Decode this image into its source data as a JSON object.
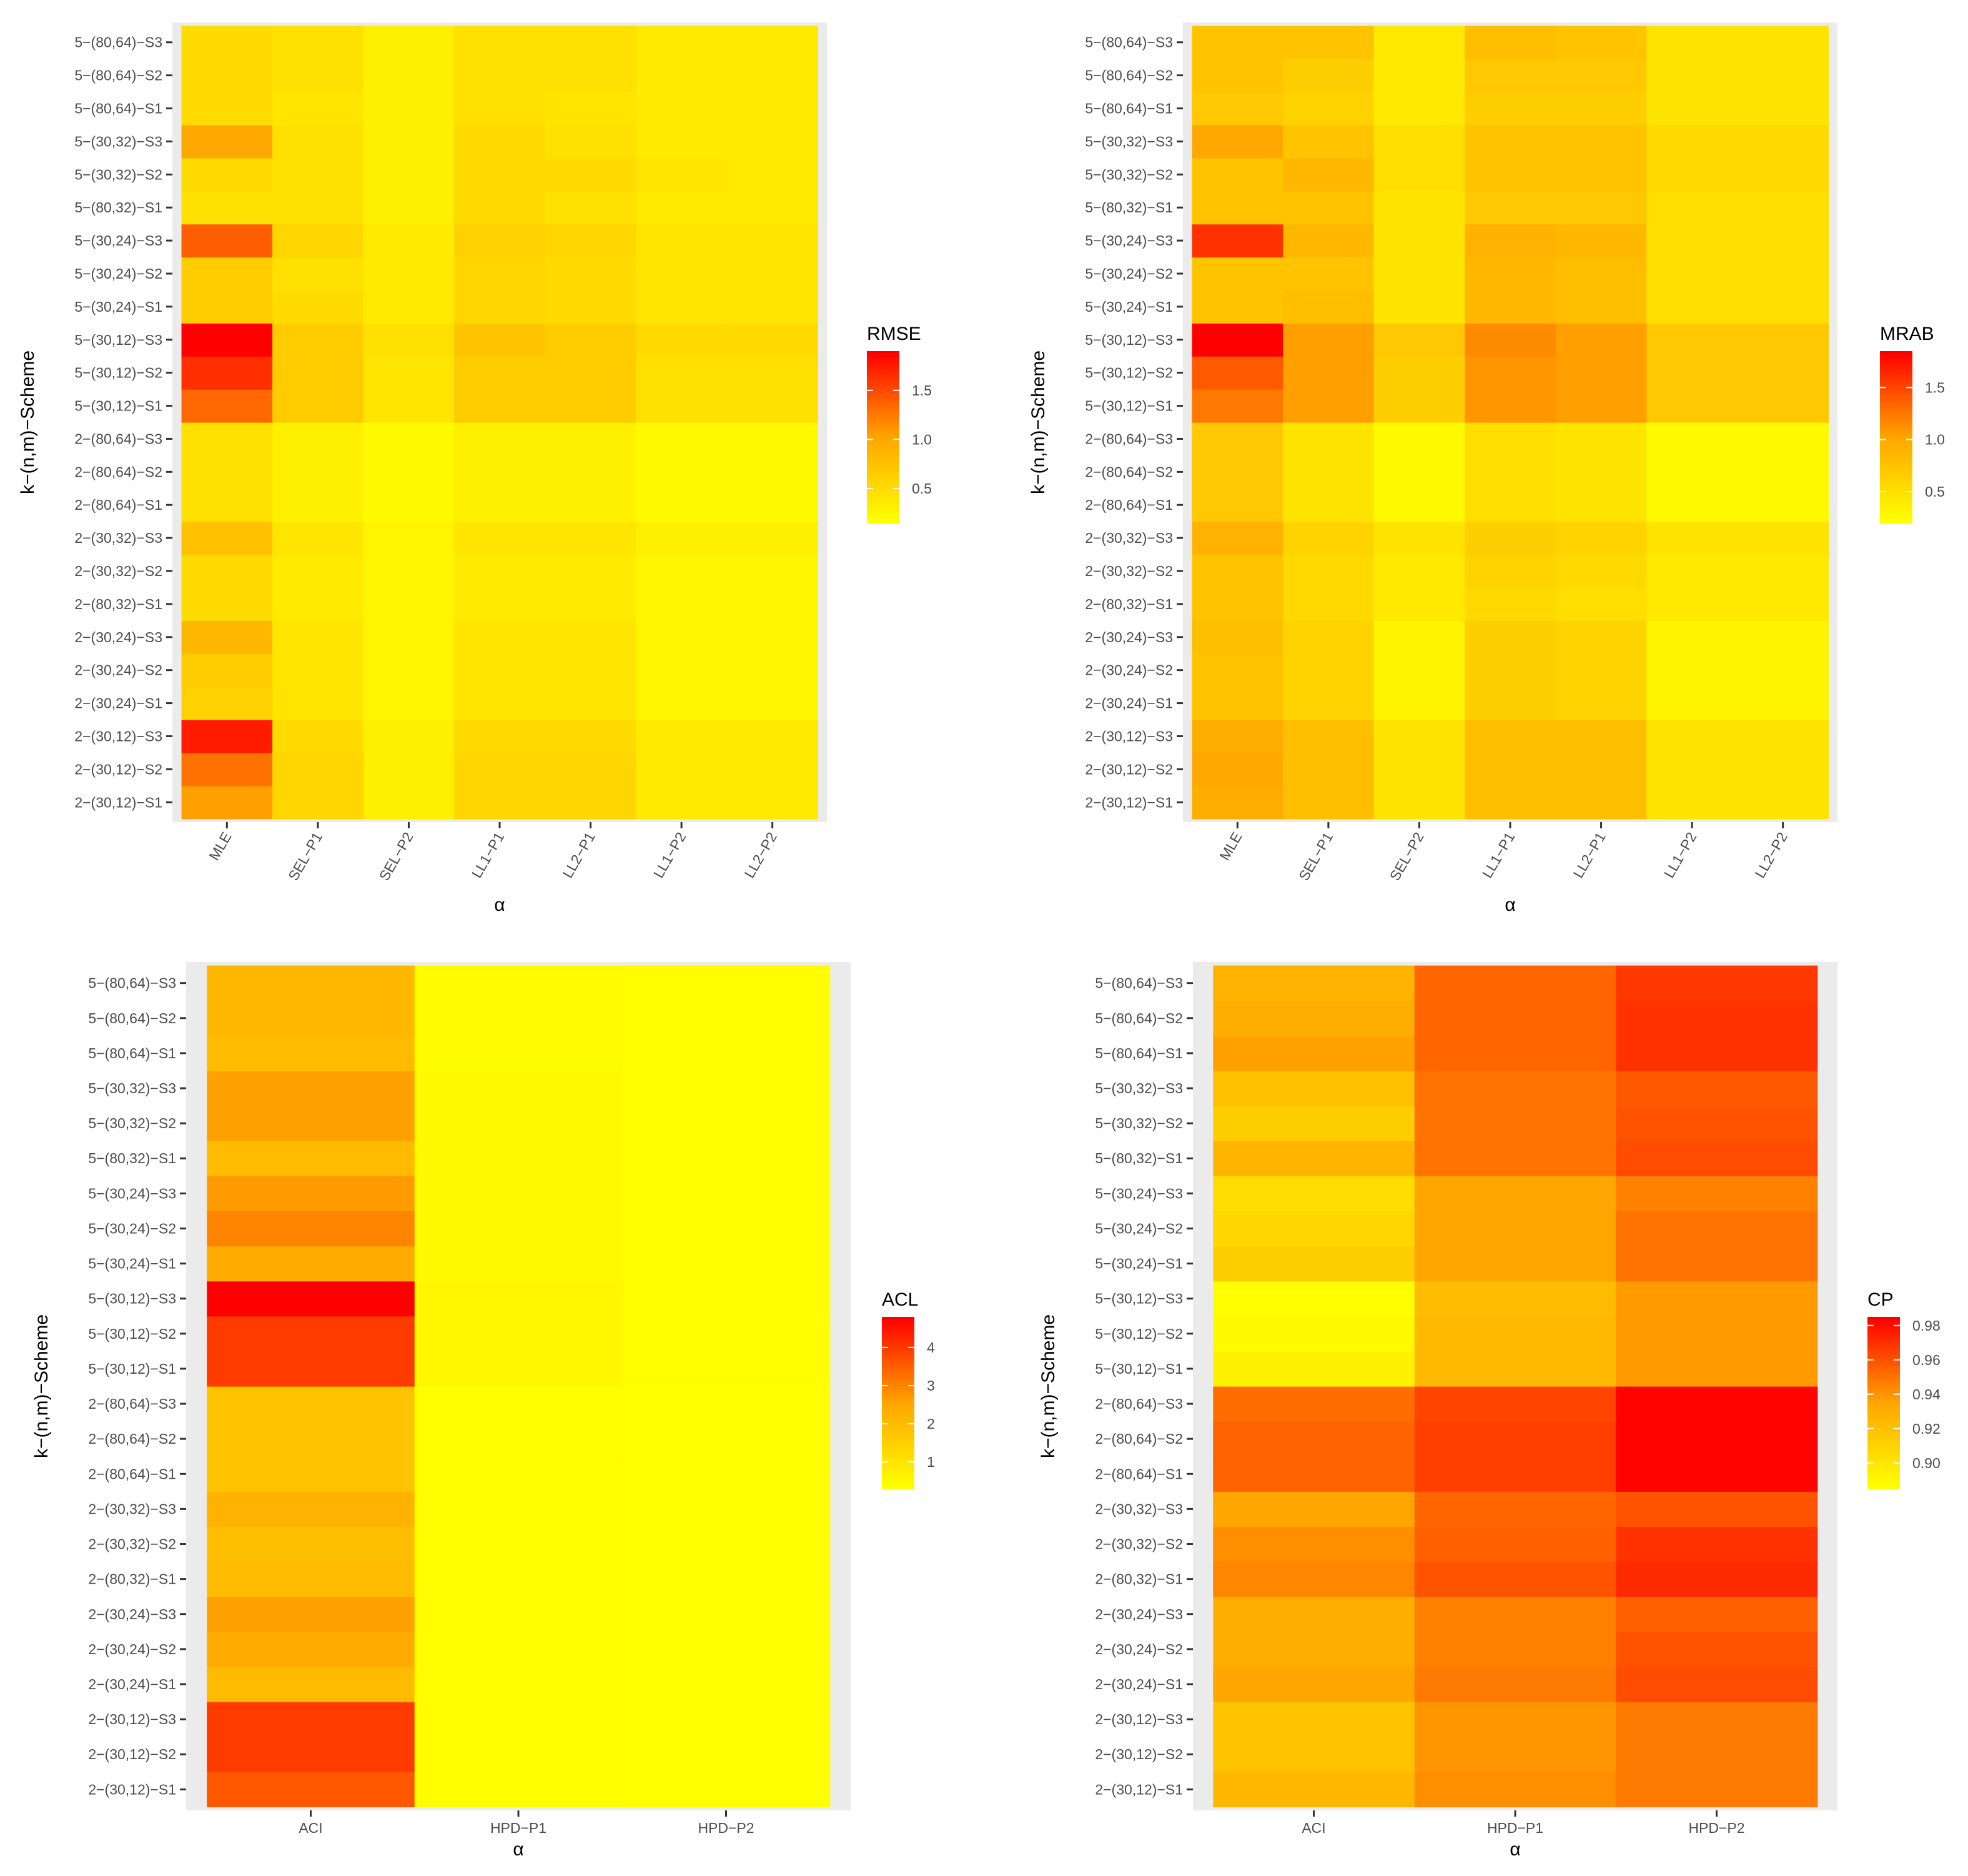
{
  "chart_data": [
    {
      "type": "heatmap",
      "title": "",
      "xlabel": "α",
      "ylabel": "k−(n,m)−Scheme",
      "legend_title": "RMSE",
      "legend_ticks": [
        "0.5",
        "1.0",
        "1.5"
      ],
      "legend_tick_values": [
        0.5,
        1.0,
        1.5
      ],
      "color_range": [
        0.15,
        1.9
      ],
      "x": [
        "MLE",
        "SEL−P1",
        "SEL−P2",
        "LL1−P1",
        "LL2−P1",
        "LL1−P2",
        "LL2−P2"
      ],
      "y": [
        "2−(30,12)−S1",
        "2−(30,12)−S2",
        "2−(30,12)−S3",
        "2−(30,24)−S1",
        "2−(30,24)−S2",
        "2−(30,24)−S3",
        "2−(80,32)−S1",
        "2−(30,32)−S2",
        "2−(30,32)−S3",
        "2−(80,64)−S1",
        "2−(80,64)−S2",
        "2−(80,64)−S3",
        "5−(30,12)−S1",
        "5−(30,12)−S2",
        "5−(30,12)−S3",
        "5−(30,24)−S1",
        "5−(30,24)−S2",
        "5−(30,24)−S3",
        "5−(80,32)−S1",
        "5−(30,32)−S2",
        "5−(30,32)−S3",
        "5−(80,64)−S1",
        "5−(80,64)−S2",
        "5−(80,64)−S3"
      ],
      "values": [
        [
          1.05,
          0.55,
          0.3,
          0.55,
          0.55,
          0.35,
          0.35
        ],
        [
          1.3,
          0.55,
          0.3,
          0.55,
          0.55,
          0.35,
          0.35
        ],
        [
          1.75,
          0.5,
          0.3,
          0.5,
          0.5,
          0.35,
          0.35
        ],
        [
          0.6,
          0.4,
          0.25,
          0.4,
          0.4,
          0.25,
          0.25
        ],
        [
          0.65,
          0.4,
          0.25,
          0.4,
          0.4,
          0.25,
          0.25
        ],
        [
          0.85,
          0.4,
          0.25,
          0.4,
          0.4,
          0.25,
          0.25
        ],
        [
          0.5,
          0.35,
          0.25,
          0.35,
          0.35,
          0.25,
          0.25
        ],
        [
          0.5,
          0.35,
          0.25,
          0.35,
          0.35,
          0.25,
          0.25
        ],
        [
          0.75,
          0.4,
          0.25,
          0.4,
          0.4,
          0.3,
          0.3
        ],
        [
          0.45,
          0.3,
          0.2,
          0.3,
          0.3,
          0.2,
          0.2
        ],
        [
          0.45,
          0.3,
          0.2,
          0.3,
          0.3,
          0.2,
          0.2
        ],
        [
          0.45,
          0.3,
          0.2,
          0.3,
          0.3,
          0.2,
          0.2
        ],
        [
          1.35,
          0.65,
          0.4,
          0.65,
          0.65,
          0.45,
          0.45
        ],
        [
          1.65,
          0.65,
          0.4,
          0.65,
          0.65,
          0.45,
          0.45
        ],
        [
          1.9,
          0.65,
          0.45,
          0.7,
          0.65,
          0.5,
          0.5
        ],
        [
          0.65,
          0.5,
          0.35,
          0.55,
          0.5,
          0.4,
          0.4
        ],
        [
          0.65,
          0.45,
          0.35,
          0.55,
          0.5,
          0.4,
          0.4
        ],
        [
          1.4,
          0.55,
          0.35,
          0.6,
          0.55,
          0.4,
          0.4
        ],
        [
          0.45,
          0.45,
          0.3,
          0.5,
          0.45,
          0.35,
          0.35
        ],
        [
          0.5,
          0.45,
          0.3,
          0.5,
          0.5,
          0.4,
          0.35
        ],
        [
          1.0,
          0.45,
          0.3,
          0.5,
          0.45,
          0.35,
          0.35
        ],
        [
          0.5,
          0.4,
          0.3,
          0.45,
          0.4,
          0.35,
          0.35
        ],
        [
          0.5,
          0.45,
          0.3,
          0.45,
          0.45,
          0.35,
          0.35
        ],
        [
          0.5,
          0.45,
          0.3,
          0.45,
          0.45,
          0.35,
          0.35
        ]
      ]
    },
    {
      "type": "heatmap",
      "title": "",
      "xlabel": "α",
      "ylabel": "k−(n,m)−Scheme",
      "legend_title": "MRAB",
      "legend_ticks": [
        "0.5",
        "1.0",
        "1.5"
      ],
      "legend_tick_values": [
        0.5,
        1.0,
        1.5
      ],
      "color_range": [
        0.2,
        1.85
      ],
      "x": [
        "MLE",
        "SEL−P1",
        "SEL−P2",
        "LL1−P1",
        "LL2−P1",
        "LL1−P2",
        "LL2−P2"
      ],
      "y": [
        "2−(30,12)−S1",
        "2−(30,12)−S2",
        "2−(30,12)−S3",
        "2−(30,24)−S1",
        "2−(30,24)−S2",
        "2−(30,24)−S3",
        "2−(80,32)−S1",
        "2−(30,32)−S2",
        "2−(30,32)−S3",
        "2−(80,64)−S1",
        "2−(80,64)−S2",
        "2−(80,64)−S3",
        "5−(30,12)−S1",
        "5−(30,12)−S2",
        "5−(30,12)−S3",
        "5−(30,24)−S1",
        "5−(30,24)−S2",
        "5−(30,24)−S3",
        "5−(80,32)−S1",
        "5−(30,32)−S2",
        "5−(30,32)−S3",
        "5−(80,64)−S1",
        "5−(80,64)−S2",
        "5−(80,64)−S3"
      ],
      "values": [
        [
          0.95,
          0.8,
          0.45,
          0.8,
          0.8,
          0.45,
          0.45
        ],
        [
          1.0,
          0.8,
          0.45,
          0.8,
          0.8,
          0.45,
          0.45
        ],
        [
          0.95,
          0.8,
          0.45,
          0.8,
          0.8,
          0.45,
          0.45
        ],
        [
          0.75,
          0.6,
          0.3,
          0.65,
          0.6,
          0.3,
          0.3
        ],
        [
          0.75,
          0.6,
          0.3,
          0.65,
          0.6,
          0.3,
          0.3
        ],
        [
          0.8,
          0.6,
          0.3,
          0.65,
          0.6,
          0.3,
          0.3
        ],
        [
          0.75,
          0.55,
          0.4,
          0.55,
          0.5,
          0.4,
          0.4
        ],
        [
          0.75,
          0.55,
          0.4,
          0.6,
          0.55,
          0.4,
          0.4
        ],
        [
          0.9,
          0.6,
          0.45,
          0.65,
          0.6,
          0.45,
          0.45
        ],
        [
          0.7,
          0.45,
          0.25,
          0.5,
          0.45,
          0.25,
          0.25
        ],
        [
          0.7,
          0.45,
          0.25,
          0.5,
          0.45,
          0.25,
          0.25
        ],
        [
          0.7,
          0.45,
          0.25,
          0.5,
          0.45,
          0.25,
          0.25
        ],
        [
          1.25,
          1.05,
          0.65,
          1.1,
          1.05,
          0.7,
          0.7
        ],
        [
          1.4,
          1.05,
          0.65,
          1.1,
          1.05,
          0.7,
          0.7
        ],
        [
          1.85,
          1.05,
          0.7,
          1.15,
          1.05,
          0.7,
          0.7
        ],
        [
          0.75,
          0.8,
          0.45,
          0.85,
          0.8,
          0.5,
          0.5
        ],
        [
          0.75,
          0.75,
          0.45,
          0.85,
          0.8,
          0.5,
          0.5
        ],
        [
          1.6,
          0.85,
          0.45,
          0.9,
          0.85,
          0.5,
          0.5
        ],
        [
          0.75,
          0.75,
          0.45,
          0.7,
          0.7,
          0.5,
          0.5
        ],
        [
          0.75,
          0.85,
          0.5,
          0.75,
          0.75,
          0.55,
          0.55
        ],
        [
          1.0,
          0.75,
          0.5,
          0.75,
          0.75,
          0.55,
          0.55
        ],
        [
          0.7,
          0.6,
          0.4,
          0.65,
          0.65,
          0.45,
          0.45
        ],
        [
          0.75,
          0.65,
          0.4,
          0.7,
          0.7,
          0.45,
          0.45
        ],
        [
          0.75,
          0.75,
          0.4,
          0.8,
          0.75,
          0.45,
          0.45
        ]
      ]
    },
    {
      "type": "heatmap",
      "title": "",
      "xlabel": "α",
      "ylabel": "k−(n,m)−Scheme",
      "legend_title": "ACL",
      "legend_ticks": [
        "1",
        "2",
        "3",
        "4"
      ],
      "legend_tick_values": [
        1,
        2,
        3,
        4
      ],
      "color_range": [
        0.3,
        4.8
      ],
      "x": [
        "ACI",
        "HPD−P1",
        "HPD−P2"
      ],
      "y": [
        "2−(30,12)−S1",
        "2−(30,12)−S2",
        "2−(30,12)−S3",
        "2−(30,24)−S1",
        "2−(30,24)−S2",
        "2−(30,24)−S3",
        "2−(80,32)−S1",
        "2−(30,32)−S2",
        "2−(30,32)−S3",
        "2−(80,64)−S1",
        "2−(80,64)−S2",
        "2−(80,64)−S3",
        "5−(30,12)−S1",
        "5−(30,12)−S2",
        "5−(30,12)−S3",
        "5−(30,24)−S1",
        "5−(30,24)−S2",
        "5−(30,24)−S3",
        "5−(80,32)−S1",
        "5−(30,32)−S2",
        "5−(30,32)−S3",
        "5−(80,64)−S1",
        "5−(80,64)−S2",
        "5−(80,64)−S3"
      ],
      "values": [
        [
          3.6,
          0.35,
          0.3
        ],
        [
          4.0,
          0.35,
          0.3
        ],
        [
          4.0,
          0.35,
          0.3
        ],
        [
          2.0,
          0.35,
          0.3
        ],
        [
          2.4,
          0.35,
          0.3
        ],
        [
          2.6,
          0.35,
          0.3
        ],
        [
          2.0,
          0.35,
          0.3
        ],
        [
          1.9,
          0.35,
          0.3
        ],
        [
          2.2,
          0.35,
          0.3
        ],
        [
          1.8,
          0.35,
          0.3
        ],
        [
          1.8,
          0.35,
          0.3
        ],
        [
          1.8,
          0.35,
          0.3
        ],
        [
          4.0,
          0.5,
          0.35
        ],
        [
          4.0,
          0.5,
          0.35
        ],
        [
          4.8,
          0.5,
          0.35
        ],
        [
          2.4,
          0.45,
          0.35
        ],
        [
          3.0,
          0.45,
          0.35
        ],
        [
          2.7,
          0.45,
          0.35
        ],
        [
          2.0,
          0.45,
          0.35
        ],
        [
          2.6,
          0.45,
          0.35
        ],
        [
          2.6,
          0.45,
          0.35
        ],
        [
          2.0,
          0.4,
          0.35
        ],
        [
          2.1,
          0.4,
          0.35
        ],
        [
          2.1,
          0.4,
          0.35
        ]
      ]
    },
    {
      "type": "heatmap",
      "title": "",
      "xlabel": "α",
      "ylabel": "k−(n,m)−Scheme",
      "legend_title": "CP",
      "legend_ticks": [
        "0.90",
        "0.92",
        "0.94",
        "0.96",
        "0.98"
      ],
      "legend_tick_values": [
        0.9,
        0.92,
        0.94,
        0.96,
        0.98
      ],
      "color_range": [
        0.885,
        0.985
      ],
      "x": [
        "ACI",
        "HPD−P1",
        "HPD−P2"
      ],
      "y": [
        "2−(30,12)−S1",
        "2−(30,12)−S2",
        "2−(30,12)−S3",
        "2−(30,24)−S1",
        "2−(30,24)−S2",
        "2−(30,24)−S3",
        "2−(80,32)−S1",
        "2−(30,32)−S2",
        "2−(30,32)−S3",
        "2−(80,64)−S1",
        "2−(80,64)−S2",
        "2−(80,64)−S3",
        "5−(30,12)−S1",
        "5−(30,12)−S2",
        "5−(30,12)−S3",
        "5−(30,24)−S1",
        "5−(30,24)−S2",
        "5−(30,24)−S3",
        "5−(80,32)−S1",
        "5−(30,32)−S2",
        "5−(30,32)−S3",
        "5−(80,64)−S1",
        "5−(80,64)−S2",
        "5−(80,64)−S3"
      ],
      "values": [
        [
          0.925,
          0.942,
          0.948
        ],
        [
          0.918,
          0.94,
          0.948
        ],
        [
          0.918,
          0.94,
          0.948
        ],
        [
          0.934,
          0.948,
          0.962
        ],
        [
          0.93,
          0.946,
          0.96
        ],
        [
          0.93,
          0.946,
          0.956
        ],
        [
          0.944,
          0.96,
          0.972
        ],
        [
          0.942,
          0.956,
          0.97
        ],
        [
          0.935,
          0.954,
          0.96
        ],
        [
          0.955,
          0.966,
          0.984
        ],
        [
          0.955,
          0.966,
          0.984
        ],
        [
          0.952,
          0.964,
          0.984
        ],
        [
          0.892,
          0.924,
          0.938
        ],
        [
          0.888,
          0.924,
          0.938
        ],
        [
          0.886,
          0.922,
          0.938
        ],
        [
          0.912,
          0.934,
          0.95
        ],
        [
          0.908,
          0.934,
          0.95
        ],
        [
          0.904,
          0.934,
          0.946
        ],
        [
          0.926,
          0.95,
          0.962
        ],
        [
          0.912,
          0.95,
          0.96
        ],
        [
          0.92,
          0.95,
          0.958
        ],
        [
          0.936,
          0.954,
          0.97
        ],
        [
          0.93,
          0.954,
          0.97
        ],
        [
          0.928,
          0.954,
          0.968
        ]
      ]
    }
  ]
}
